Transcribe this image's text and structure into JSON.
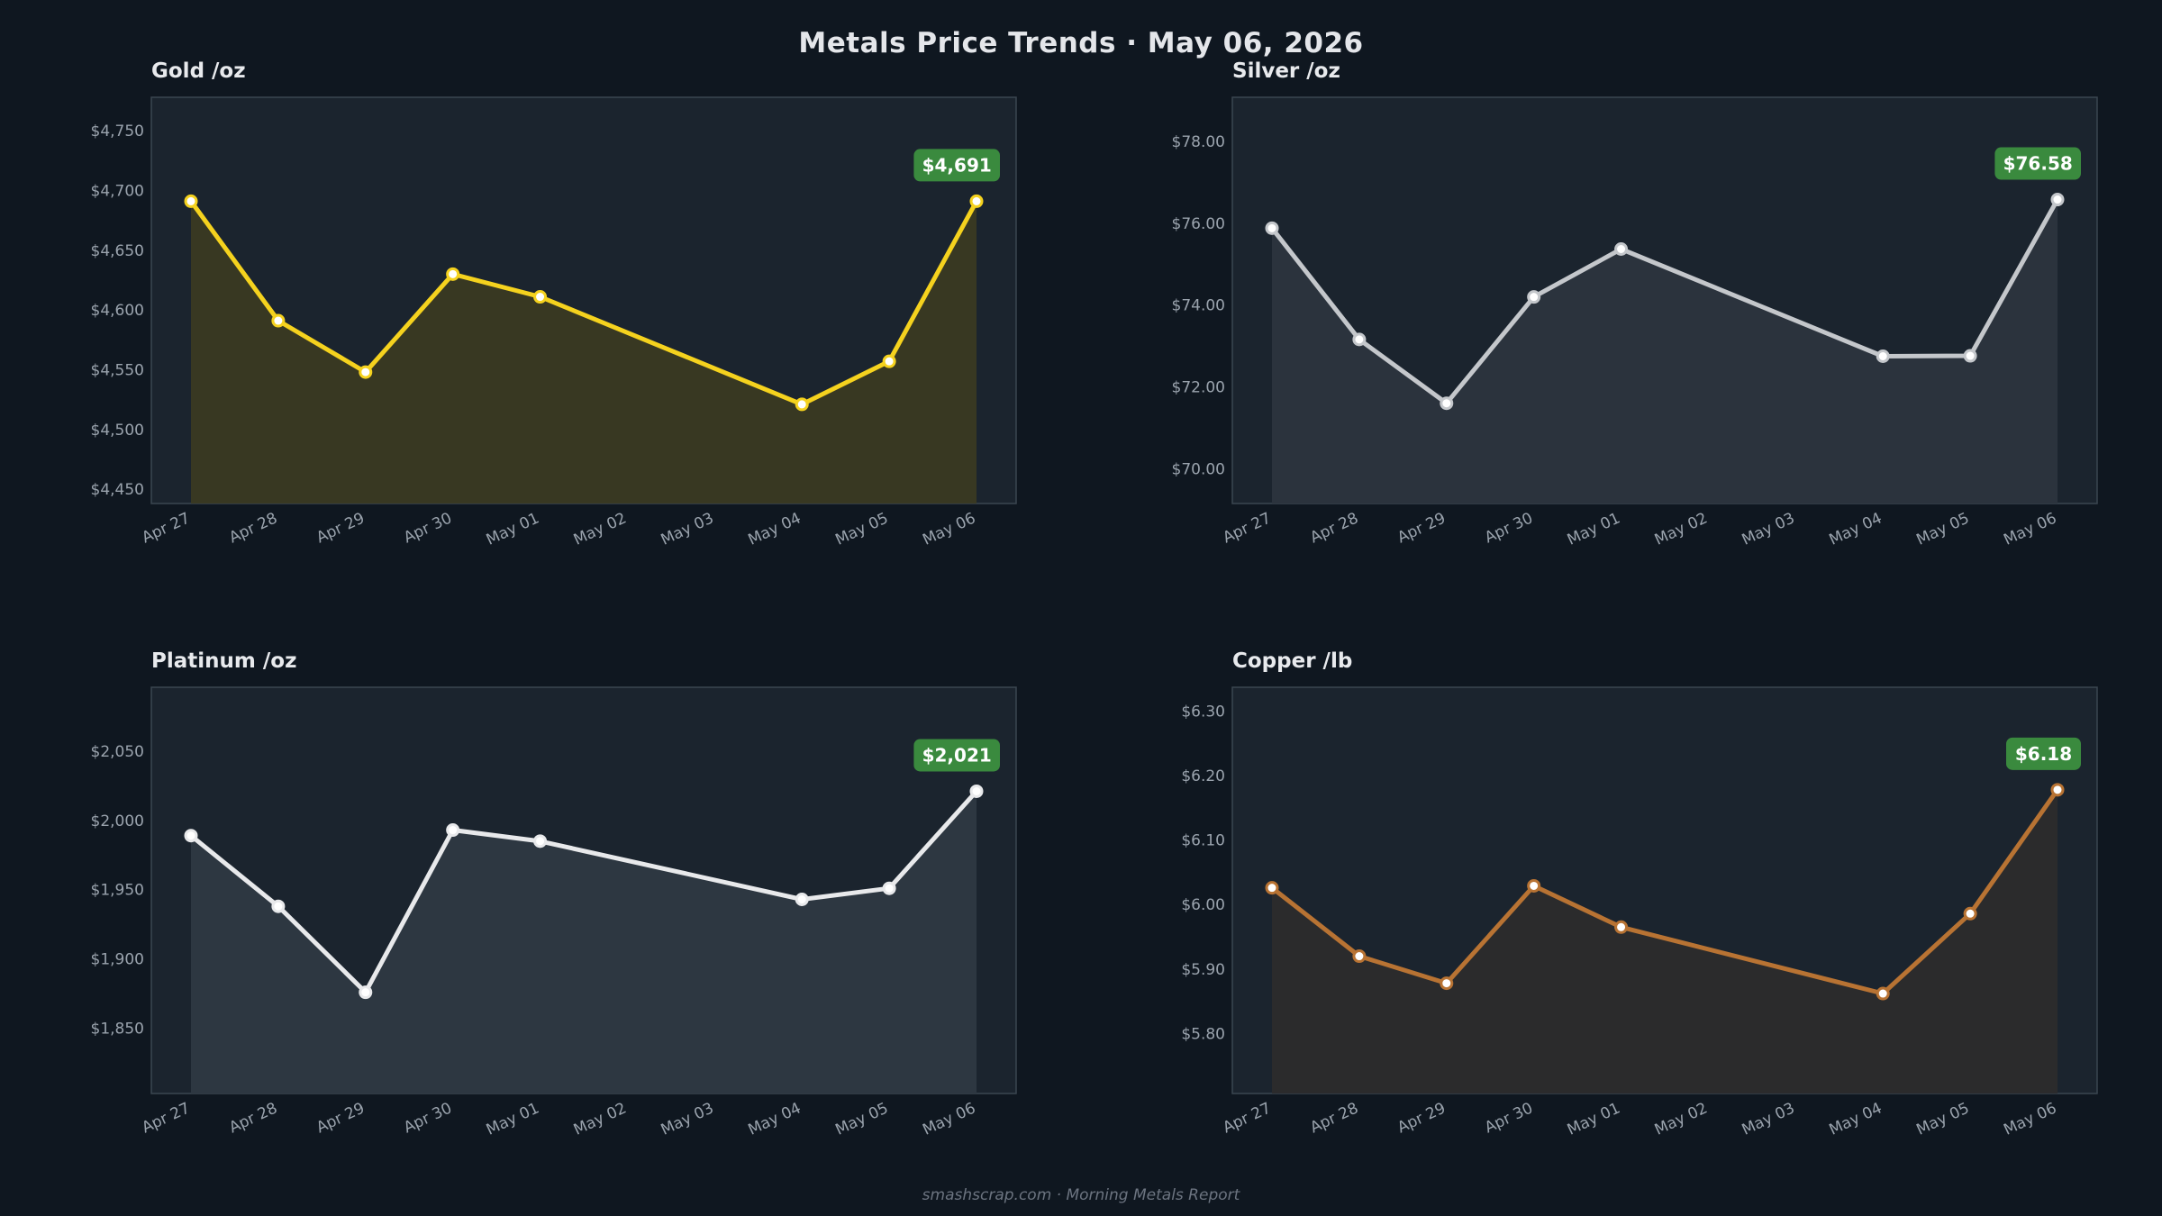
{
  "title": "Metals Price Trends  ·  May 06, 2026",
  "footer": "smashscrap.com  ·  Morning Metals Report",
  "chart_data": [
    {
      "type": "area",
      "title": "Gold  /oz",
      "color": "#f5d21e",
      "fill": "#3a3a22",
      "x": [
        "Apr 27",
        "Apr 28",
        "Apr 29",
        "Apr 30",
        "May 01",
        "May 04",
        "May 05",
        "May 06"
      ],
      "x_ticks": [
        "Apr 27",
        "Apr 28",
        "Apr 29",
        "Apr 30",
        "May 01",
        "May 02",
        "May 03",
        "May 04",
        "May 05",
        "May 06"
      ],
      "values": [
        4691,
        4591,
        4548,
        4630,
        4611,
        4521,
        4557,
        4691
      ],
      "ylim": [
        4438,
        4778
      ],
      "y_ticks": [
        4450,
        4500,
        4550,
        4600,
        4650,
        4700,
        4750
      ],
      "y_tick_labels": [
        "$4,450",
        "$4,500",
        "$4,550",
        "$4,600",
        "$4,650",
        "$4,700",
        "$4,750"
      ],
      "latest_label": "$4,691"
    },
    {
      "type": "area",
      "title": "Silver  /oz",
      "color": "#c4c7cb",
      "fill": "#2c353e",
      "x": [
        "Apr 27",
        "Apr 28",
        "Apr 29",
        "Apr 30",
        "May 01",
        "May 04",
        "May 05",
        "May 06"
      ],
      "x_ticks": [
        "Apr 27",
        "Apr 28",
        "Apr 29",
        "Apr 30",
        "May 01",
        "May 02",
        "May 03",
        "May 04",
        "May 05",
        "May 06"
      ],
      "values": [
        75.88,
        73.16,
        71.6,
        74.2,
        75.37,
        72.75,
        72.76,
        76.58
      ],
      "ylim": [
        69.15,
        79.08
      ],
      "y_ticks": [
        70,
        72,
        74,
        76,
        78
      ],
      "y_tick_labels": [
        "$70.00",
        "$72.00",
        "$74.00",
        "$76.00",
        "$78.00"
      ],
      "latest_label": "$76.58"
    },
    {
      "type": "area",
      "title": "Platinum  /oz",
      "color": "#e8e9eb",
      "fill": "#2e3942",
      "x": [
        "Apr 27",
        "Apr 28",
        "Apr 29",
        "Apr 30",
        "May 01",
        "May 04",
        "May 05",
        "May 06"
      ],
      "x_ticks": [
        "Apr 27",
        "Apr 28",
        "Apr 29",
        "Apr 30",
        "May 01",
        "May 02",
        "May 03",
        "May 04",
        "May 05",
        "May 06"
      ],
      "values": [
        1989,
        1938,
        1876,
        1993,
        1985,
        1943,
        1951,
        2021
      ],
      "ylim": [
        1803,
        2096
      ],
      "y_ticks": [
        1850,
        1900,
        1950,
        2000,
        2050
      ],
      "y_tick_labels": [
        "$1,850",
        "$1,900",
        "$1,950",
        "$2,000",
        "$2,050"
      ],
      "latest_label": "$2,021"
    },
    {
      "type": "area",
      "title": "Copper  /lb",
      "color": "#b87333",
      "fill": "#2c2c2c",
      "x": [
        "Apr 27",
        "Apr 28",
        "Apr 29",
        "Apr 30",
        "May 01",
        "May 04",
        "May 05",
        "May 06"
      ],
      "x_ticks": [
        "Apr 27",
        "Apr 28",
        "Apr 29",
        "Apr 30",
        "May 01",
        "May 02",
        "May 03",
        "May 04",
        "May 05",
        "May 06"
      ],
      "values": [
        6.026,
        5.92,
        5.878,
        6.029,
        5.965,
        5.862,
        5.986,
        6.178
      ],
      "ylim": [
        5.707,
        6.337
      ],
      "y_ticks": [
        5.8,
        5.9,
        6.0,
        6.1,
        6.2,
        6.3
      ],
      "y_tick_labels": [
        "$5.80",
        "$5.90",
        "$6.00",
        "$6.10",
        "$6.20",
        "$6.30"
      ],
      "latest_label": "$6.18"
    }
  ],
  "colors": {
    "background": "#0f1720",
    "plot_background": "#1b242e",
    "badge": "#3a8a3e",
    "tick_text": "#9aa3ad"
  }
}
